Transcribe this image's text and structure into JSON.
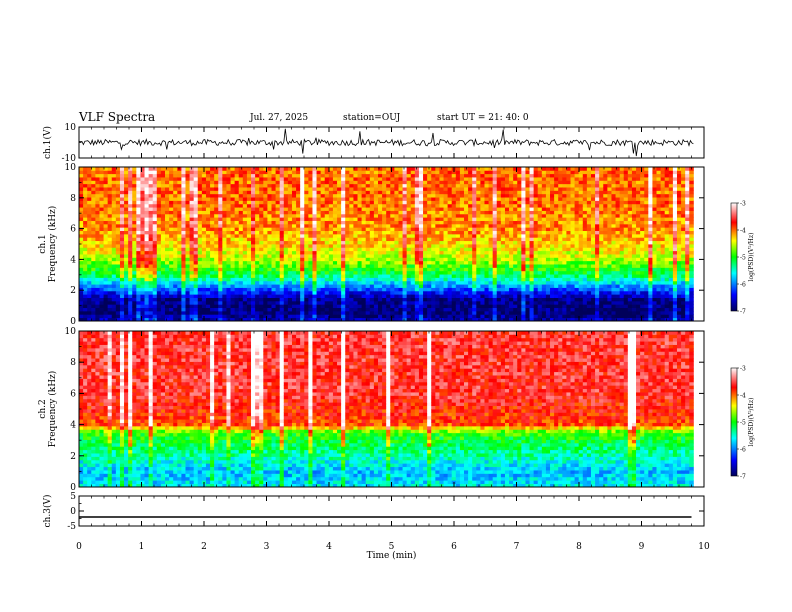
{
  "header": {
    "title": "VLF Spectra",
    "date": "Jul. 27, 2025",
    "station": "station=OUJ",
    "start": "start UT =  21: 40: 0"
  },
  "colors": {
    "colormap": [
      "#00005a",
      "#0000ff",
      "#00ffff",
      "#00ff00",
      "#ffff00",
      "#ff0000",
      "#ffffff"
    ],
    "trace": "#000000"
  },
  "chart_data": [
    {
      "type": "line",
      "id": "ch1-waveform",
      "ylabel": "ch.1(V)",
      "ylim": [
        -10,
        10
      ],
      "yticks": [
        "10",
        "-10"
      ],
      "x": [
        0,
        1,
        2,
        3,
        4,
        5,
        6,
        7,
        8,
        9,
        9.8
      ],
      "values": [
        0,
        0,
        0,
        0,
        0,
        0,
        0,
        0,
        0,
        0,
        0
      ]
    },
    {
      "type": "heatmap",
      "id": "ch1-spectrogram",
      "ylabel": "ch.1\nFrequency (kHz)",
      "ylim": [
        0,
        10
      ],
      "yticks": [
        "0",
        "2",
        "4",
        "6",
        "8",
        "10"
      ],
      "colorbar": {
        "label": "log(PSD)(V²/Hz)",
        "range": [
          -7,
          -3
        ],
        "ticks": [
          "-3",
          "-4",
          "-5",
          "-6",
          "-7"
        ]
      },
      "profile": [
        {
          "f": 0.0,
          "level": -6.6
        },
        {
          "f": 0.5,
          "level": -6.9
        },
        {
          "f": 1.0,
          "level": -6.9
        },
        {
          "f": 1.5,
          "level": -6.8
        },
        {
          "f": 2.0,
          "level": -6.2
        },
        {
          "f": 2.5,
          "level": -5.7
        },
        {
          "f": 3.0,
          "level": -5.2
        },
        {
          "f": 4.0,
          "level": -4.6
        },
        {
          "f": 5.0,
          "level": -4.3
        },
        {
          "f": 6.0,
          "level": -4.1
        },
        {
          "f": 8.0,
          "level": -4.0
        },
        {
          "f": 10.0,
          "level": -4.0
        }
      ]
    },
    {
      "type": "heatmap",
      "id": "ch2-spectrogram",
      "ylabel": "ch.2\nFrequency (kHz)",
      "ylim": [
        0,
        10
      ],
      "yticks": [
        "0",
        "2",
        "4",
        "6",
        "8",
        "10"
      ],
      "colorbar": {
        "label": "log(PSD)(V²/Hz)",
        "range": [
          -7,
          -3
        ],
        "ticks": [
          "-3",
          "-4",
          "-5",
          "-6",
          "-7"
        ]
      },
      "profile": [
        {
          "f": 0.0,
          "level": -5.6
        },
        {
          "f": 1.0,
          "level": -5.8
        },
        {
          "f": 2.0,
          "level": -5.4
        },
        {
          "f": 3.0,
          "level": -5.1
        },
        {
          "f": 3.5,
          "level": -4.9
        },
        {
          "f": 4.0,
          "level": -3.9
        },
        {
          "f": 6.0,
          "level": -3.6
        },
        {
          "f": 8.0,
          "level": -3.6
        },
        {
          "f": 10.0,
          "level": -3.6
        }
      ]
    },
    {
      "type": "line",
      "id": "ch3-trace",
      "ylabel": "ch.3(V)",
      "ylim": [
        -5,
        5
      ],
      "yticks": [
        "5",
        "0",
        "-5"
      ],
      "x": [
        0,
        9.8
      ],
      "values": [
        -2,
        -2
      ]
    }
  ],
  "xaxis": {
    "label": "Time (min)",
    "range": [
      0,
      10
    ],
    "ticks": [
      "0",
      "1",
      "2",
      "3",
      "4",
      "5",
      "6",
      "7",
      "8",
      "9",
      "10"
    ]
  }
}
